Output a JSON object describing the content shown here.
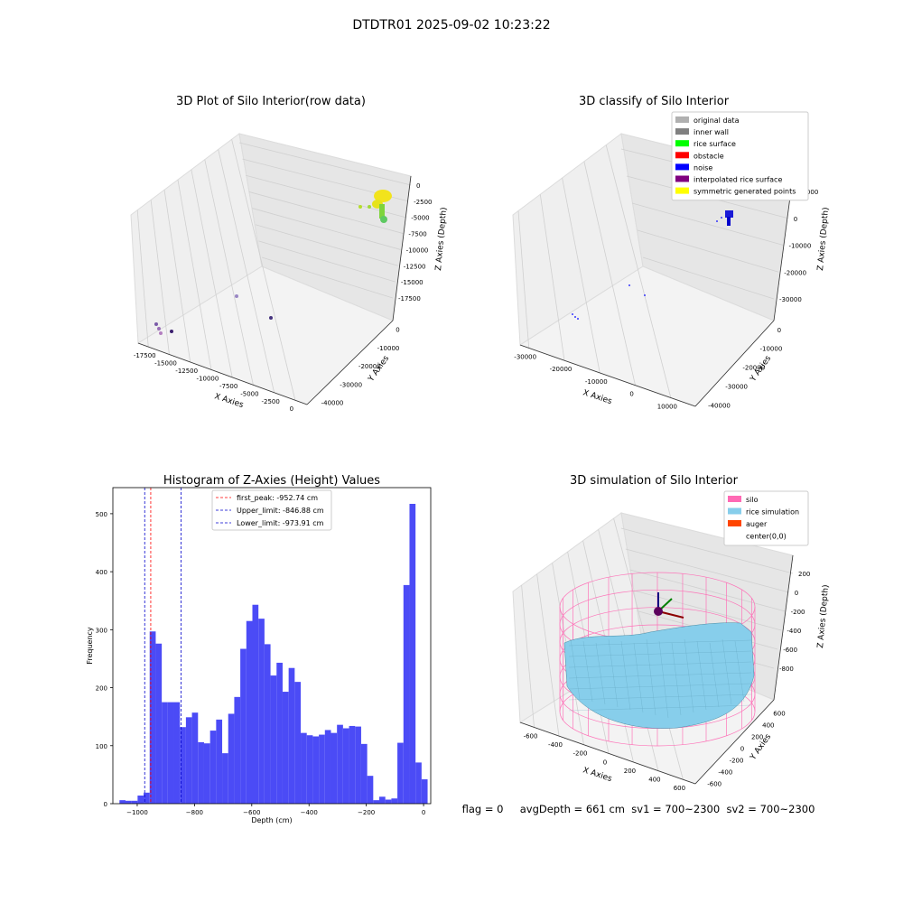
{
  "figure": {
    "title": "DTDTR01 2025-09-02 10:23:22",
    "footer": "flag = 0     avgDepth = 661 cm  sv1 = 700~2300  sv2 = 700~2300"
  },
  "chart_data": [
    {
      "type": "scatter",
      "title": "3D Plot of Silo Interior(row data)",
      "xlabel": "X Axies",
      "ylabel": "Y Axies",
      "zlabel": "Z Axies (Depth)",
      "x_ticks": [
        "-17500",
        "-15000",
        "-12500",
        "-10000",
        "-7500",
        "-5000",
        "-2500",
        "0"
      ],
      "y_ticks": [
        "0",
        "-10000",
        "-20000",
        "-30000",
        "-40000"
      ],
      "z_ticks": [
        "0",
        "-2500",
        "-5000",
        "-7500",
        "-10000",
        "-12500",
        "-15000",
        "-17500"
      ],
      "grid": true
    },
    {
      "type": "scatter",
      "title": "3D classify of Silo Interior",
      "xlabel": "X Axies",
      "ylabel": "Y Axies",
      "zlabel": "Z Axies (Depth)",
      "x_ticks": [
        "-30000",
        "-20000",
        "-10000",
        "0",
        "10000"
      ],
      "y_ticks": [
        "0",
        "-10000",
        "-20000",
        "-30000",
        "-40000"
      ],
      "z_ticks": [
        "10000",
        "0",
        "-10000",
        "-20000",
        "-30000"
      ],
      "grid": true,
      "legend_position": "top-right",
      "legend": [
        {
          "label": "original data",
          "color": "#b0b0b0"
        },
        {
          "label": "inner wall",
          "color": "#808080"
        },
        {
          "label": "rice surface",
          "color": "#00ff00"
        },
        {
          "label": "obstacle",
          "color": "#ff0000"
        },
        {
          "label": "noise",
          "color": "#0000ff"
        },
        {
          "label": "interpolated rice surface",
          "color": "#800080"
        },
        {
          "label": "symmetric generated points",
          "color": "#ffff00"
        }
      ]
    },
    {
      "type": "bar",
      "title": "Histogram of Z-Axies (Height) Values",
      "xlabel": "Depth (cm)",
      "ylabel": "Frequency",
      "xlim": [
        -1085,
        25
      ],
      "ylim": [
        0,
        545
      ],
      "x_ticks": [
        -1000,
        -800,
        -600,
        -400,
        -200,
        0
      ],
      "y_ticks": [
        0,
        100,
        200,
        300,
        400,
        500
      ],
      "bar_color": "#4b4bf6",
      "bin_start": -1062,
      "bin_width": 21.1,
      "values": [
        6,
        5,
        5,
        14,
        19,
        297,
        276,
        175,
        175,
        175,
        132,
        149,
        157,
        106,
        104,
        126,
        145,
        87,
        155,
        184,
        267,
        315,
        343,
        319,
        275,
        221,
        243,
        193,
        234,
        210,
        122,
        118,
        116,
        119,
        127,
        122,
        136,
        130,
        134,
        133,
        103,
        48,
        6,
        12,
        7,
        9,
        105,
        377,
        517,
        71,
        42
      ],
      "lines": [
        {
          "label": "first_peak: -952.74 cm",
          "value": -952.74,
          "color": "#ff0000"
        },
        {
          "label": "Upper_limit: -846.88 cm",
          "value": -846.88,
          "color": "#0000cc"
        },
        {
          "label": "Lower_limit: -973.91 cm",
          "value": -973.91,
          "color": "#0000cc"
        }
      ],
      "legend_position": "top-center"
    },
    {
      "type": "surface",
      "title": "3D simulation of Silo Interior",
      "xlabel": "X Axies",
      "ylabel": "Y Axies",
      "zlabel": "Z Axies (Depth)",
      "x_ticks": [
        "-600",
        "-400",
        "-200",
        "0",
        "200",
        "400",
        "600"
      ],
      "y_ticks": [
        "600",
        "400",
        "200",
        "0",
        "-200",
        "-400",
        "-600"
      ],
      "z_ticks": [
        "200",
        "0",
        "-200",
        "-400",
        "-600",
        "-800"
      ],
      "grid": true,
      "legend_position": "top-right",
      "legend": [
        {
          "label": "silo",
          "color": "#ff69b4"
        },
        {
          "label": "rice simulation",
          "color": "#87ceeb"
        },
        {
          "label": "auger",
          "color": "#ff4500"
        },
        {
          "label": "center(0,0)",
          "color": "#ffffff"
        }
      ]
    }
  ]
}
